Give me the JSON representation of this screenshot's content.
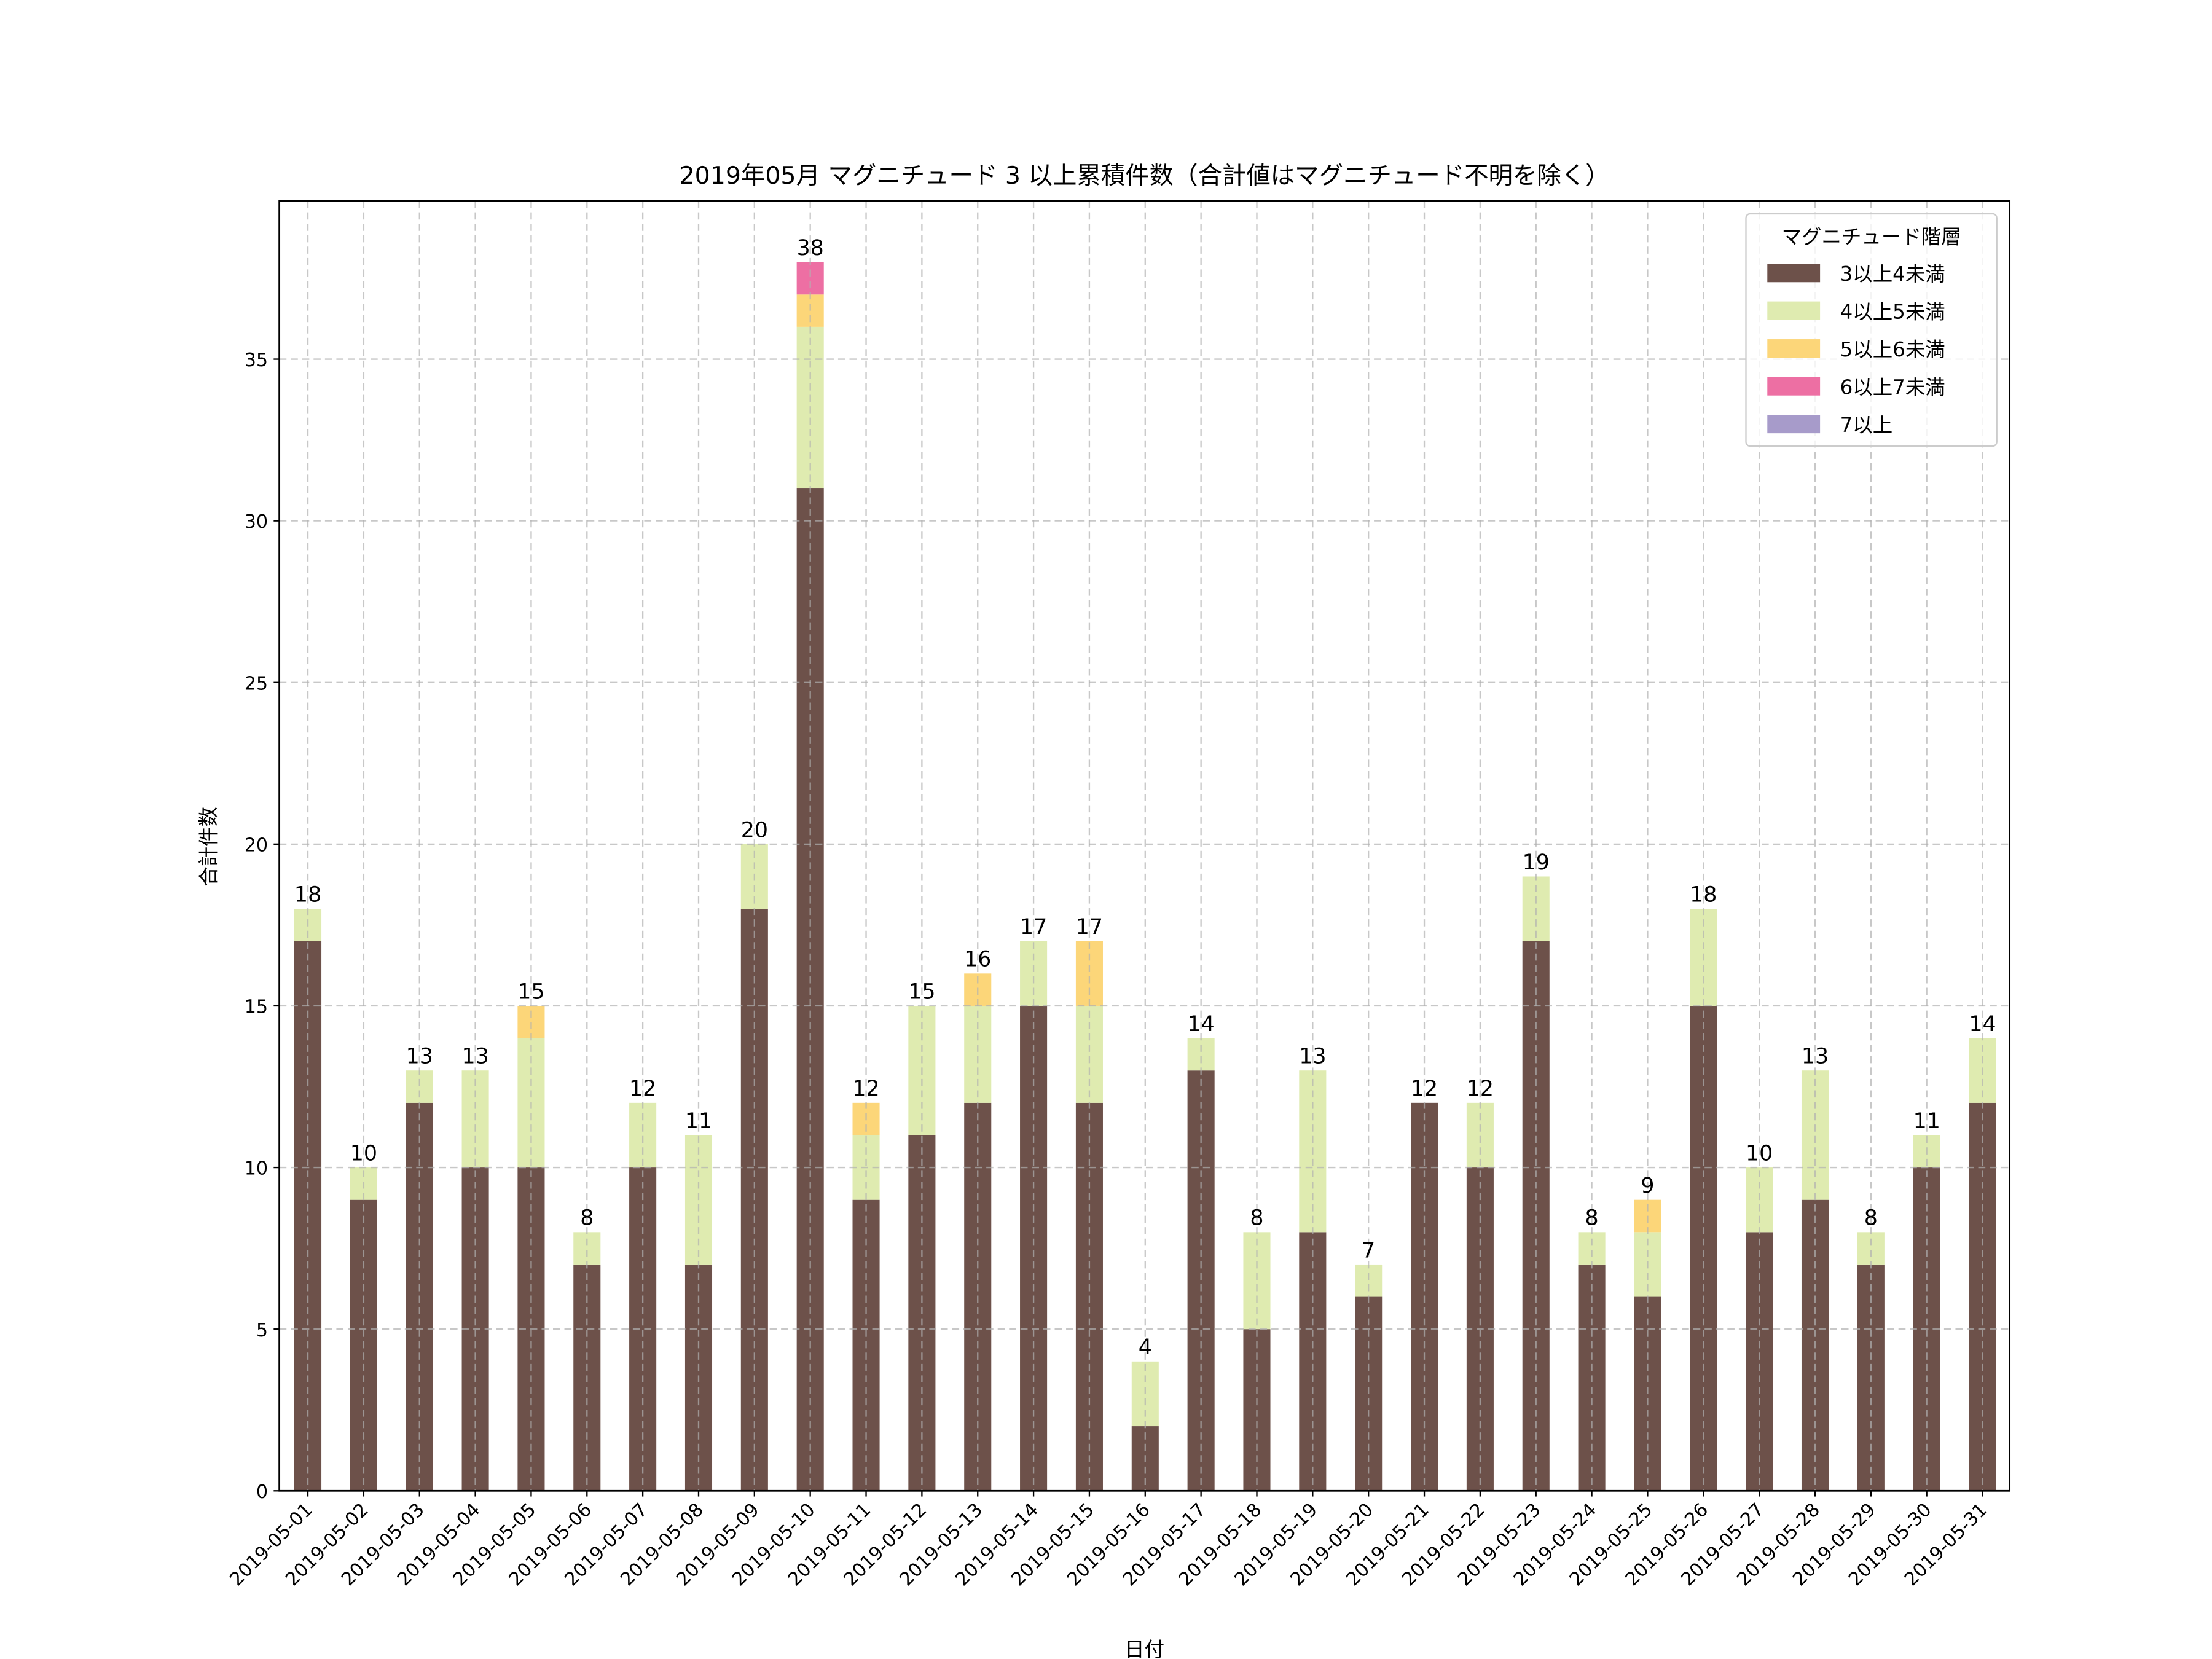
{
  "chart_data": {
    "type": "bar",
    "stacked": true,
    "title": "2019年05月 マグニチュード 3 以上累積件数（合計値はマグニチュード不明を除く）",
    "xlabel": "日付",
    "ylabel": "合計件数",
    "ylim": [
      0,
      40
    ],
    "yticks": [
      0,
      5,
      10,
      15,
      20,
      25,
      30,
      35
    ],
    "grid": true,
    "legend": {
      "title": "マグニチュード階層",
      "placement": "top-right"
    },
    "categories": [
      "2019-05-01",
      "2019-05-02",
      "2019-05-03",
      "2019-05-04",
      "2019-05-05",
      "2019-05-06",
      "2019-05-07",
      "2019-05-08",
      "2019-05-09",
      "2019-05-10",
      "2019-05-11",
      "2019-05-12",
      "2019-05-13",
      "2019-05-14",
      "2019-05-15",
      "2019-05-16",
      "2019-05-17",
      "2019-05-18",
      "2019-05-19",
      "2019-05-20",
      "2019-05-21",
      "2019-05-22",
      "2019-05-23",
      "2019-05-24",
      "2019-05-25",
      "2019-05-26",
      "2019-05-27",
      "2019-05-28",
      "2019-05-29",
      "2019-05-30",
      "2019-05-31"
    ],
    "series": [
      {
        "name": "3以上4未満",
        "color": "#6d514a",
        "values": [
          17,
          9,
          12,
          10,
          10,
          7,
          10,
          7,
          18,
          31,
          9,
          11,
          12,
          15,
          12,
          2,
          13,
          5,
          8,
          6,
          12,
          10,
          17,
          7,
          6,
          15,
          8,
          9,
          7,
          10,
          12
        ]
      },
      {
        "name": "4以上5未満",
        "color": "#dfebb0",
        "values": [
          1,
          1,
          1,
          3,
          4,
          1,
          2,
          4,
          2,
          5,
          2,
          4,
          3,
          2,
          3,
          2,
          1,
          3,
          5,
          1,
          0,
          2,
          2,
          1,
          2,
          3,
          2,
          4,
          1,
          1,
          2
        ]
      },
      {
        "name": "5以上6未満",
        "color": "#fcd679",
        "values": [
          0,
          0,
          0,
          0,
          1,
          0,
          0,
          0,
          0,
          1,
          1,
          0,
          1,
          0,
          2,
          0,
          0,
          0,
          0,
          0,
          0,
          0,
          0,
          0,
          1,
          0,
          0,
          0,
          0,
          0,
          0
        ]
      },
      {
        "name": "6以上7未満",
        "color": "#ed6fa3",
        "values": [
          0,
          0,
          0,
          0,
          0,
          0,
          0,
          0,
          0,
          1,
          0,
          0,
          0,
          0,
          0,
          0,
          0,
          0,
          0,
          0,
          0,
          0,
          0,
          0,
          0,
          0,
          0,
          0,
          0,
          0,
          0
        ]
      },
      {
        "name": "7以上",
        "color": "#a79bca",
        "values": [
          0,
          0,
          0,
          0,
          0,
          0,
          0,
          0,
          0,
          0,
          0,
          0,
          0,
          0,
          0,
          0,
          0,
          0,
          0,
          0,
          0,
          0,
          0,
          0,
          0,
          0,
          0,
          0,
          0,
          0,
          0
        ]
      }
    ],
    "totals": [
      18,
      10,
      13,
      13,
      15,
      8,
      12,
      11,
      20,
      38,
      12,
      15,
      16,
      17,
      17,
      4,
      14,
      8,
      13,
      7,
      12,
      12,
      19,
      8,
      9,
      18,
      10,
      13,
      8,
      11,
      14
    ]
  }
}
